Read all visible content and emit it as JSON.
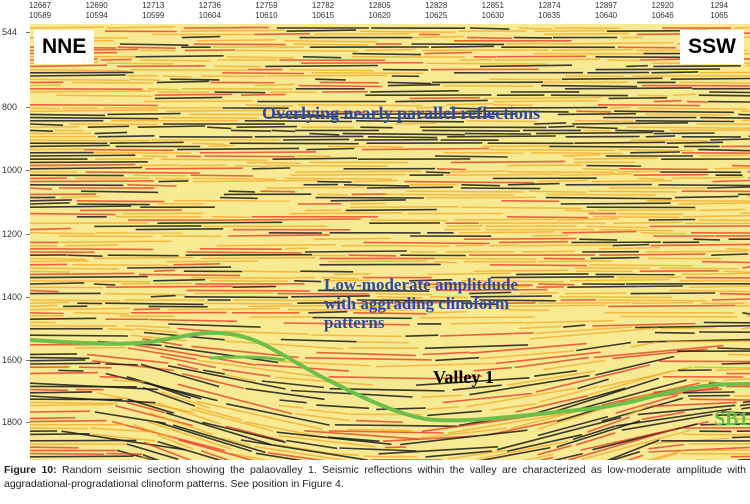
{
  "trace_header": [
    {
      "top": "12667",
      "bottom": "10589"
    },
    {
      "top": "12690",
      "bottom": "10594"
    },
    {
      "top": "12713",
      "bottom": "10599"
    },
    {
      "top": "12736",
      "bottom": "10604"
    },
    {
      "top": "12759",
      "bottom": "10610"
    },
    {
      "top": "12782",
      "bottom": "10615"
    },
    {
      "top": "12805",
      "bottom": "10620"
    },
    {
      "top": "12828",
      "bottom": "10625"
    },
    {
      "top": "12851",
      "bottom": "10630"
    },
    {
      "top": "12874",
      "bottom": "10635"
    },
    {
      "top": "12897",
      "bottom": "10640"
    },
    {
      "top": "12920",
      "bottom": "10646"
    },
    {
      "top": "1294",
      "bottom": "1065"
    }
  ],
  "time_axis": [
    "544",
    "800",
    "1000",
    "1200",
    "1400",
    "1600",
    "1800"
  ],
  "direction": {
    "left": "NNE",
    "right": "SSW"
  },
  "annotations": {
    "overlying": "Overlying nearly parallel reflections",
    "low_moderate_lines": [
      "Low-moderate amplitdude",
      "with aggrading clinoform",
      "patterns"
    ],
    "valley": "Valley 1",
    "sb": "SB1"
  },
  "colors": {
    "horizon_green": "#6cc04a",
    "annotation_blue": "#2e4aa8",
    "seismic_low": "#f7e98a",
    "seismic_mid": "#f4a21c",
    "seismic_high": "#e8321d",
    "seismic_trough": "#1a1a1a"
  },
  "caption": {
    "label": "Figure 10:",
    "text": "Random seismic section showing the palaovalley 1. Seismic reflections within the valley are characterized as low-moderate amplitude with aggradational-progradational clinoform patterns. See position in Figure 4."
  }
}
